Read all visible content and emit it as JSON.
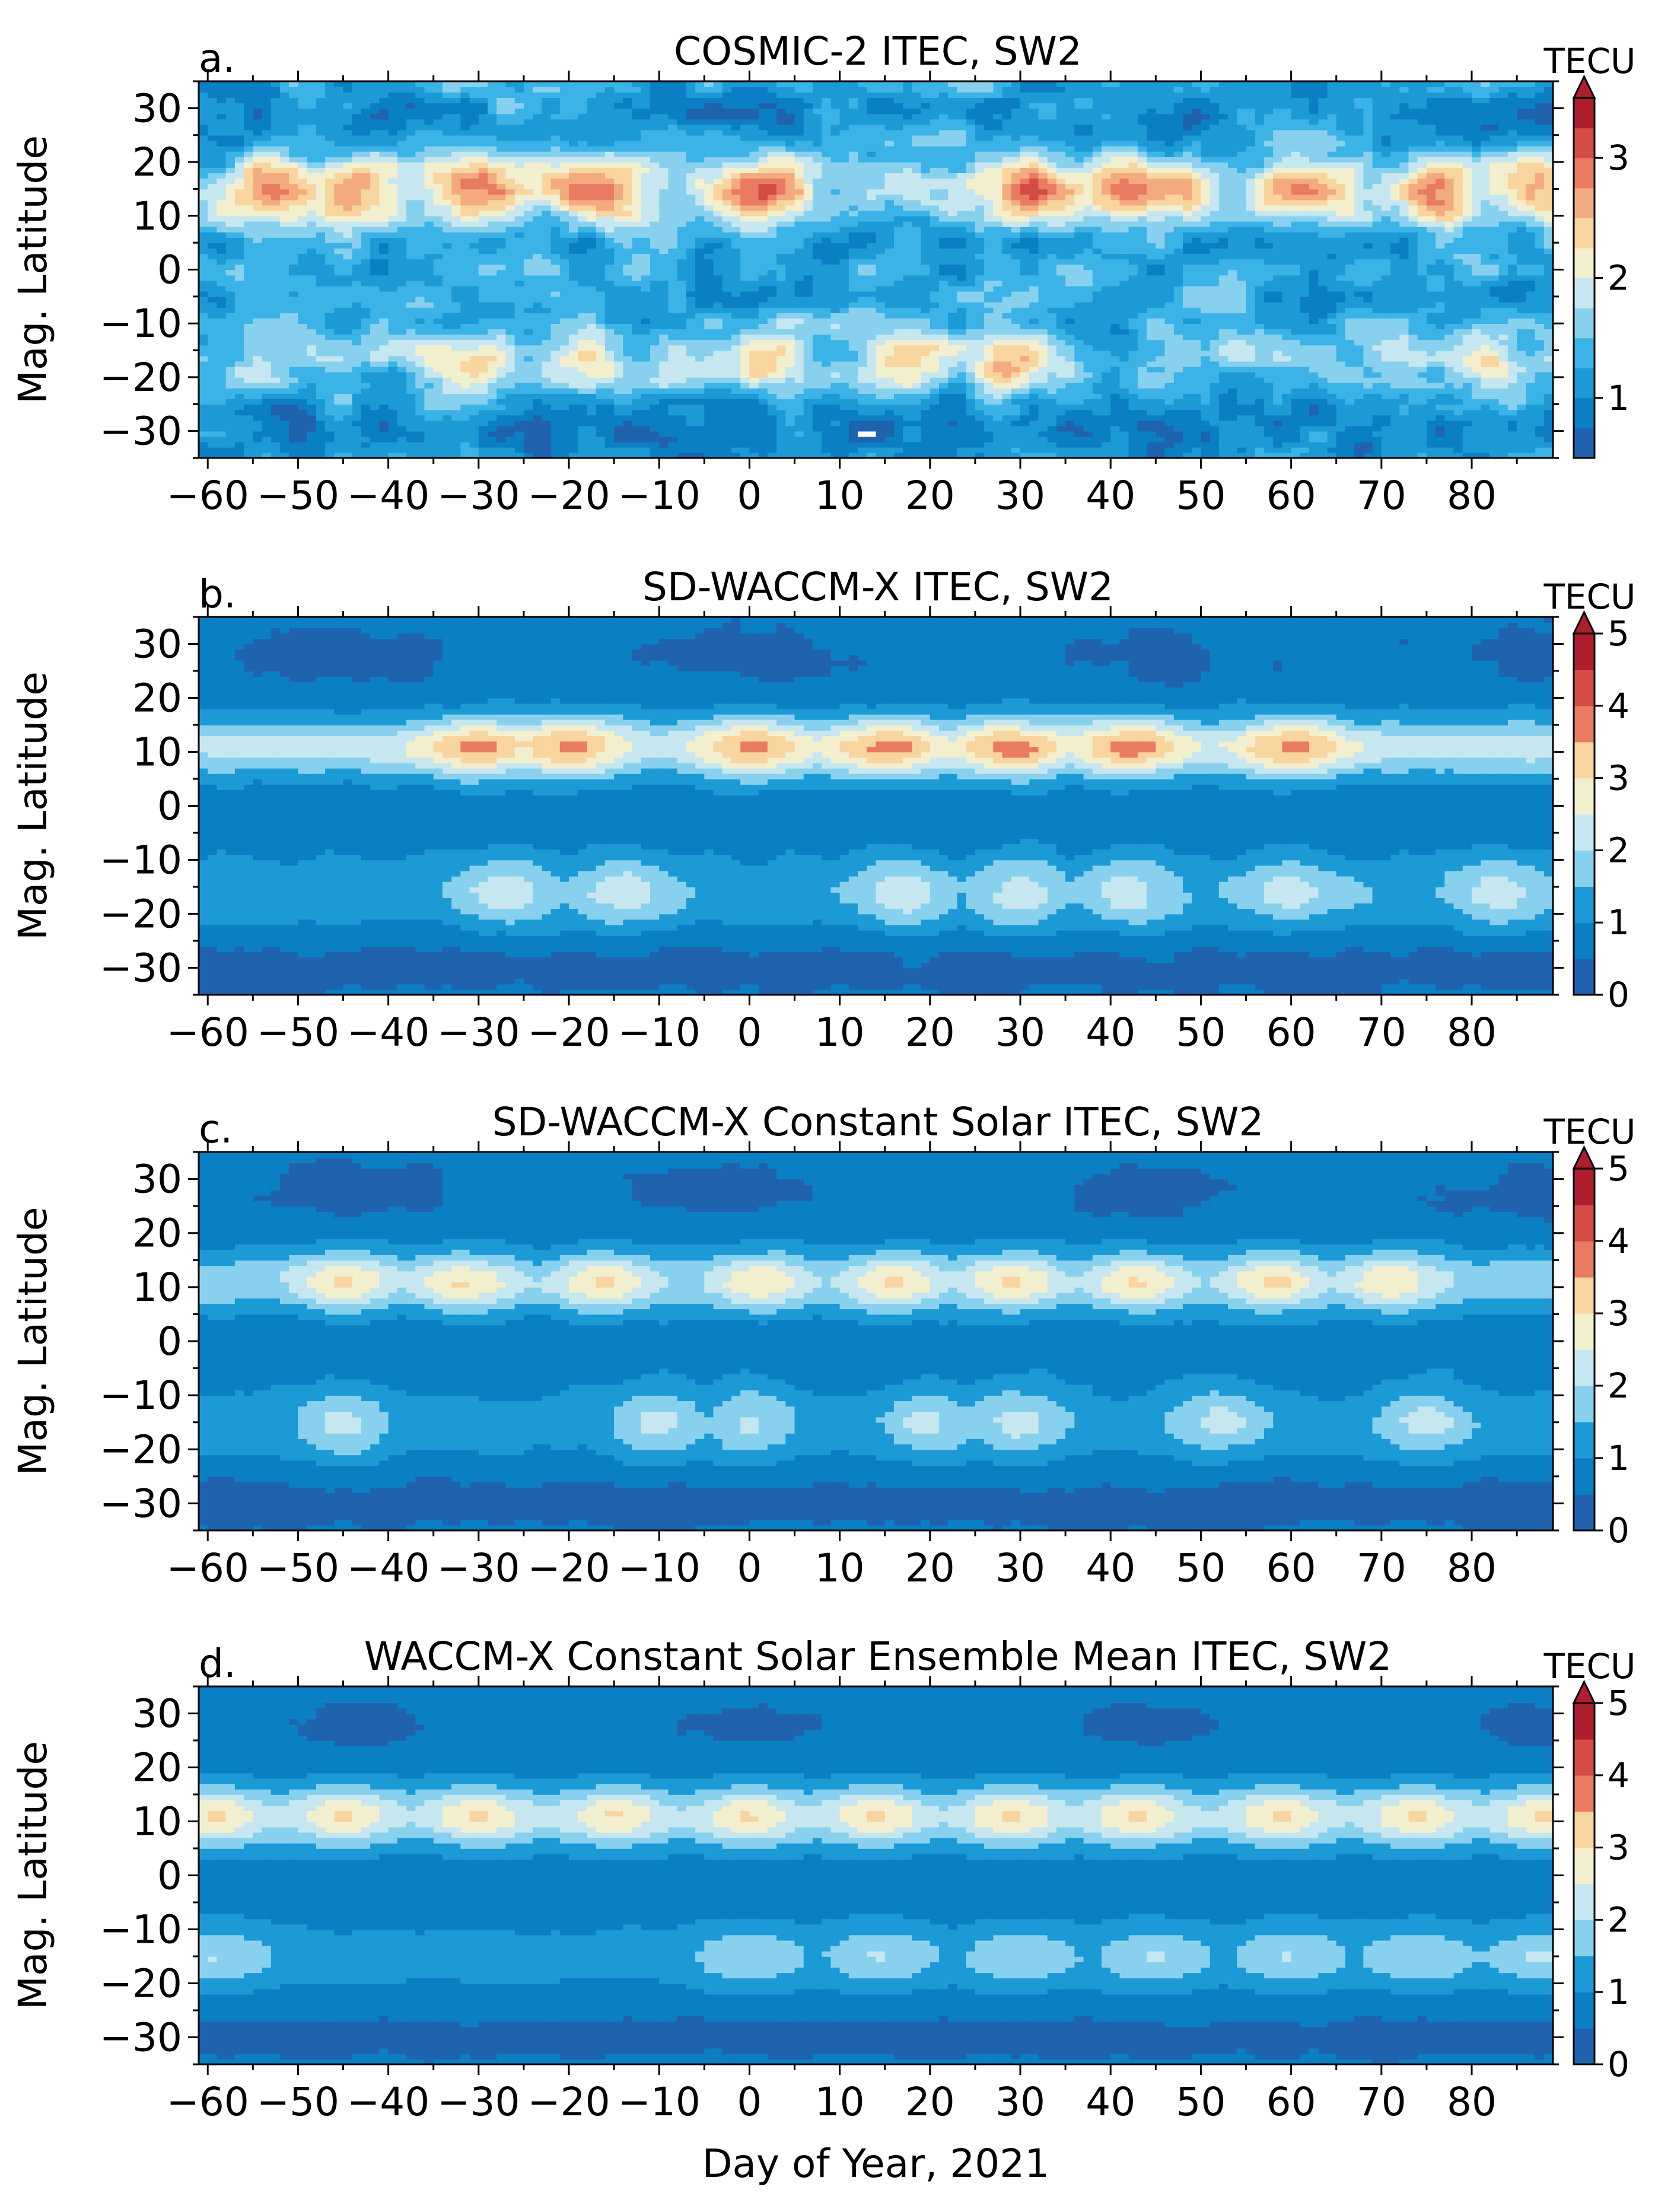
{
  "figure": {
    "xlabel": "Day of Year, 2021",
    "ylabel": "Mag. Latitude",
    "colorbar_label": "TECU"
  },
  "chart_data": [
    {
      "type": "heatmap",
      "panel_letter": "a.",
      "title": "COSMIC-2 ITEC, SW2",
      "xlabel": "",
      "ylabel": "Mag. Latitude",
      "xlim": [
        -61,
        89
      ],
      "ylim": [
        -35,
        35
      ],
      "xticks": [
        -60,
        -50,
        -40,
        -30,
        -20,
        -10,
        0,
        10,
        20,
        30,
        40,
        50,
        60,
        70,
        80
      ],
      "yticks": [
        -30,
        -20,
        -10,
        0,
        10,
        20,
        30
      ],
      "colorbar": {
        "label": "TECU",
        "vmin": 0.5,
        "vmax": 3.5,
        "ticks": [
          1,
          2,
          3
        ],
        "levels": 12,
        "extend": "max"
      },
      "model": {
        "base": 1.25,
        "noise": 0.35,
        "bands": [
          {
            "lat": 15,
            "width": 6,
            "amp": 1.05,
            "peaks": [
              -52,
              -44,
              -30,
              -17,
              1,
              31,
              44,
              62,
              76,
              87
            ],
            "peak_amp": 1.0,
            "peak_width": 5
          },
          {
            "lat": -17,
            "width": 6,
            "amp": 0.55,
            "peaks": [
              -31,
              -18,
              2,
              18,
              29,
              82
            ],
            "peak_amp": 0.85,
            "peak_width": 4
          }
        ]
      }
    },
    {
      "type": "heatmap",
      "panel_letter": "b.",
      "title": "SD-WACCM-X ITEC, SW2",
      "xlabel": "",
      "ylabel": "Mag. Latitude",
      "xlim": [
        -61,
        89
      ],
      "ylim": [
        -35,
        35
      ],
      "xticks": [
        -60,
        -50,
        -40,
        -30,
        -20,
        -10,
        0,
        10,
        20,
        30,
        40,
        50,
        60,
        70,
        80
      ],
      "yticks": [
        -30,
        -20,
        -10,
        0,
        10,
        20,
        30
      ],
      "colorbar": {
        "label": "TECU",
        "vmin": 0,
        "vmax": 5,
        "ticks": [
          0,
          1,
          2,
          3,
          4,
          5
        ],
        "levels": 10,
        "extend": "max"
      },
      "model": {
        "base": 0.7,
        "noise": 0.12,
        "bands": [
          {
            "lat": 11,
            "width": 5.5,
            "amp": 2.7,
            "peaks": [
              -30,
              -20,
              0,
              15,
              29,
              42,
              60
            ],
            "peak_amp": 1.5,
            "peak_width": 6
          },
          {
            "lat": -16,
            "width": 7,
            "amp": 1.25,
            "peaks": [
              -27,
              -14,
              17,
              30,
              42,
              60,
              83
            ],
            "peak_amp": 0.9,
            "peak_width": 5
          }
        ]
      }
    },
    {
      "type": "heatmap",
      "panel_letter": "c.",
      "title": "SD-WACCM-X Constant Solar ITEC, SW2",
      "xlabel": "",
      "ylabel": "Mag. Latitude",
      "xlim": [
        -61,
        89
      ],
      "ylim": [
        -35,
        35
      ],
      "xticks": [
        -60,
        -50,
        -40,
        -30,
        -20,
        -10,
        0,
        10,
        20,
        30,
        40,
        50,
        60,
        70,
        80
      ],
      "yticks": [
        -30,
        -20,
        -10,
        0,
        10,
        20,
        30
      ],
      "colorbar": {
        "label": "TECU",
        "vmin": 0,
        "vmax": 5,
        "ticks": [
          0,
          1,
          2,
          3,
          4,
          5
        ],
        "levels": 10,
        "extend": "max"
      },
      "model": {
        "base": 0.7,
        "noise": 0.1,
        "bands": [
          {
            "lat": 11,
            "width": 5.5,
            "amp": 2.1,
            "peaks": [
              -45,
              -32,
              -16,
              1,
              16,
              29,
              43,
              58,
              71
            ],
            "peak_amp": 1.2,
            "peak_width": 5
          },
          {
            "lat": -15,
            "width": 7,
            "amp": 1.0,
            "peaks": [
              -45,
              -10,
              0,
              20,
              30,
              52,
              75
            ],
            "peak_amp": 0.9,
            "peak_width": 5
          }
        ]
      }
    },
    {
      "type": "heatmap",
      "panel_letter": "d.",
      "title": "WACCM-X Constant Solar Ensemble Mean ITEC, SW2",
      "xlabel": "Day of Year, 2021",
      "ylabel": "Mag. Latitude",
      "xlim": [
        -61,
        89
      ],
      "ylim": [
        -35,
        35
      ],
      "xticks": [
        -60,
        -50,
        -40,
        -30,
        -20,
        -10,
        0,
        10,
        20,
        30,
        40,
        50,
        60,
        70,
        80
      ],
      "yticks": [
        -30,
        -20,
        -10,
        0,
        10,
        20,
        30
      ],
      "colorbar": {
        "label": "TECU",
        "vmin": 0,
        "vmax": 5,
        "ticks": [
          0,
          1,
          2,
          3,
          4,
          5
        ],
        "levels": 10,
        "extend": "max"
      },
      "model": {
        "base": 0.75,
        "noise": 0.05,
        "bands": [
          {
            "lat": 11,
            "width": 5.5,
            "amp": 2.2,
            "peaks": [
              -59,
              -45,
              -30,
              -15,
              0,
              14,
              29,
              43,
              59,
              74,
              88
            ],
            "peak_amp": 1.1,
            "peak_width": 5
          },
          {
            "lat": -15,
            "width": 6,
            "amp": 0.9,
            "peaks": [
              -59,
              0,
              15,
              30,
              45,
              60,
              74,
              88
            ],
            "peak_amp": 0.75,
            "peak_width": 6
          }
        ]
      }
    }
  ]
}
